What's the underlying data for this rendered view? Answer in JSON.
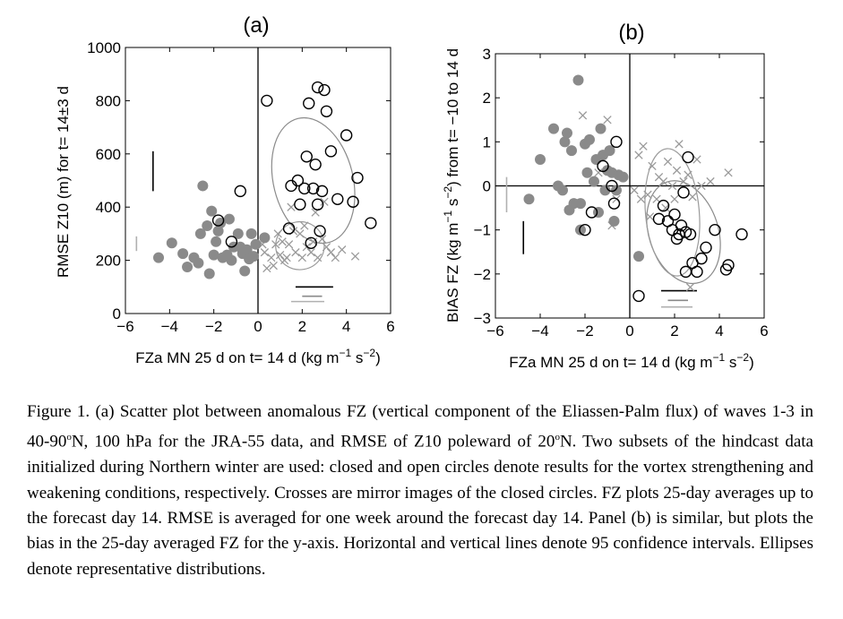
{
  "chart_data": [
    {
      "type": "scatter",
      "panel_label": "(a)",
      "xlabel": "FZa MN 25 d on t= 14 d (kg m",
      "xlabel_sup1": "−1",
      "xlabel_mid": " s",
      "xlabel_sup2": "−2",
      "xlabel_end": ")",
      "ylabel": "RMSE Z10 (m) for t= 14±3 d",
      "xlim": [
        -6,
        6
      ],
      "ylim": [
        0,
        1000
      ],
      "xticks": [
        -6,
        -4,
        -2,
        0,
        2,
        4,
        6
      ],
      "xtick_labels": [
        "−6",
        "−4",
        "−2",
        "0",
        "2",
        "4",
        "6"
      ],
      "yticks": [
        0,
        200,
        400,
        600,
        800,
        1000
      ],
      "ytick_labels": [
        "0",
        "200",
        "400",
        "600",
        "800",
        "1000"
      ],
      "grid": false,
      "reference_lines": {
        "x": 0
      },
      "series": [
        {
          "marker": "filled-circle",
          "color": "#8a8a8a",
          "points": [
            [
              -4.5,
              210
            ],
            [
              -3.9,
              265
            ],
            [
              -3.4,
              225
            ],
            [
              -3.2,
              175
            ],
            [
              -2.9,
              210
            ],
            [
              -2.7,
              190
            ],
            [
              -2.6,
              300
            ],
            [
              -2.5,
              480
            ],
            [
              -2.3,
              330
            ],
            [
              -2.2,
              150
            ],
            [
              -2.1,
              385
            ],
            [
              -1.9,
              270
            ],
            [
              -1.8,
              310
            ],
            [
              -1.7,
              340
            ],
            [
              -1.6,
              210
            ],
            [
              -1.4,
              220
            ],
            [
              -1.3,
              355
            ],
            [
              -1.2,
              200
            ],
            [
              -1.1,
              250
            ],
            [
              -0.9,
              300
            ],
            [
              -0.8,
              250
            ],
            [
              -0.7,
              225
            ],
            [
              -0.6,
              160
            ],
            [
              -0.5,
              240
            ],
            [
              -0.4,
              205
            ],
            [
              -0.3,
              300
            ],
            [
              -0.2,
              215
            ],
            [
              0.3,
              285
            ],
            [
              -0.1,
              260
            ],
            [
              -2.0,
              220
            ]
          ]
        },
        {
          "marker": "open-circle",
          "color": "#000000",
          "points": [
            [
              -1.8,
              350
            ],
            [
              -0.8,
              460
            ],
            [
              -1.2,
              270
            ],
            [
              0.4,
              800
            ],
            [
              1.4,
              320
            ],
            [
              1.5,
              480
            ],
            [
              1.8,
              500
            ],
            [
              1.9,
              410
            ],
            [
              2.1,
              470
            ],
            [
              2.2,
              590
            ],
            [
              2.3,
              790
            ],
            [
              2.4,
              265
            ],
            [
              2.5,
              470
            ],
            [
              2.6,
              560
            ],
            [
              2.7,
              850
            ],
            [
              2.8,
              310
            ],
            [
              2.9,
              460
            ],
            [
              3.0,
              840
            ],
            [
              3.1,
              760
            ],
            [
              3.3,
              610
            ],
            [
              3.6,
              430
            ],
            [
              4.0,
              670
            ],
            [
              4.3,
              420
            ],
            [
              4.5,
              510
            ],
            [
              5.1,
              340
            ],
            [
              2.7,
              410
            ]
          ]
        },
        {
          "marker": "cross",
          "color": "#9a9a9a",
          "points": [
            [
              0.2,
              260
            ],
            [
              0.3,
              230
            ],
            [
              0.6,
              210
            ],
            [
              0.7,
              180
            ],
            [
              0.8,
              260
            ],
            [
              0.9,
              300
            ],
            [
              1.0,
              220
            ],
            [
              1.2,
              200
            ],
            [
              1.3,
              210
            ],
            [
              1.4,
              260
            ],
            [
              1.6,
              310
            ],
            [
              1.7,
              230
            ],
            [
              1.9,
              300
            ],
            [
              2.0,
              210
            ],
            [
              2.1,
              330
            ],
            [
              2.2,
              250
            ],
            [
              2.4,
              230
            ],
            [
              2.5,
              270
            ],
            [
              2.7,
              210
            ],
            [
              2.9,
              280
            ],
            [
              3.1,
              250
            ],
            [
              3.3,
              230
            ],
            [
              3.5,
              210
            ],
            [
              3.0,
              420
            ],
            [
              0.4,
              170
            ],
            [
              1.5,
              400
            ],
            [
              2.6,
              380
            ],
            [
              4.4,
              215
            ],
            [
              3.8,
              240
            ],
            [
              1.1,
              270
            ]
          ]
        }
      ],
      "ellipses": [
        {
          "cx": 2.5,
          "cy": 500,
          "rx": 1.8,
          "ry": 240,
          "rotate": -14,
          "color": "#8a8a8a"
        },
        {
          "cx": 1.9,
          "cy": 255,
          "rx": 1.1,
          "ry": 90,
          "rotate": -10,
          "color": "#9a9a9a"
        }
      ],
      "ci_marks": [
        {
          "orient": "v",
          "x": -4.75,
          "y0": 460,
          "y1": 610,
          "color": "#000000"
        },
        {
          "orient": "v",
          "x": -5.5,
          "y0": 235,
          "y1": 290,
          "color": "#b0b0b0"
        },
        {
          "orient": "h",
          "y": 100,
          "x0": 1.7,
          "x1": 3.4,
          "color": "#000000"
        },
        {
          "orient": "h",
          "y": 65,
          "x0": 2.0,
          "x1": 2.9,
          "color": "#8a8a8a"
        },
        {
          "orient": "h",
          "y": 45,
          "x0": 1.5,
          "x1": 3.0,
          "color": "#b0b0b0"
        }
      ]
    },
    {
      "type": "scatter",
      "panel_label": "(b)",
      "xlabel": "FZa MN 25 d on t= 14 d (kg m",
      "xlabel_sup1": "−1",
      "xlabel_mid": " s",
      "xlabel_sup2": "−2",
      "xlabel_end": ")",
      "ylabel": "BIAS FZ (kg m",
      "ylabel_sup1": "−1",
      "ylabel_mid": " s",
      "ylabel_sup2": "−2",
      "ylabel_end": ") from t= −10 to 14 d",
      "xlim": [
        -6,
        6
      ],
      "ylim": [
        -3,
        3
      ],
      "xticks": [
        -6,
        -4,
        -2,
        0,
        2,
        4,
        6
      ],
      "xtick_labels": [
        "−6",
        "−4",
        "−2",
        "0",
        "2",
        "4",
        "6"
      ],
      "yticks": [
        -3,
        -2,
        -1,
        0,
        1,
        2,
        3
      ],
      "ytick_labels": [
        "−3",
        "−2",
        "−1",
        "0",
        "1",
        "2",
        "3"
      ],
      "grid": false,
      "reference_lines": {
        "x": 0,
        "y": 0
      },
      "series": [
        {
          "marker": "filled-circle",
          "color": "#8a8a8a",
          "points": [
            [
              -4.5,
              -0.3
            ],
            [
              -4.0,
              0.6
            ],
            [
              -3.4,
              1.3
            ],
            [
              -3.2,
              0.0
            ],
            [
              -3.0,
              -0.1
            ],
            [
              -2.8,
              1.2
            ],
            [
              -2.7,
              -0.55
            ],
            [
              -2.6,
              0.8
            ],
            [
              -2.5,
              -0.4
            ],
            [
              -2.3,
              2.4
            ],
            [
              -2.2,
              -1.0
            ],
            [
              -2.2,
              -0.4
            ],
            [
              -2.0,
              0.95
            ],
            [
              -1.9,
              0.3
            ],
            [
              -1.8,
              1.05
            ],
            [
              -1.6,
              0.1
            ],
            [
              -1.5,
              0.6
            ],
            [
              -1.3,
              1.3
            ],
            [
              -1.2,
              0.7
            ],
            [
              -1.1,
              -0.1
            ],
            [
              -1.0,
              0.35
            ],
            [
              -0.9,
              0.8
            ],
            [
              -0.8,
              0.3
            ],
            [
              -0.7,
              -0.8
            ],
            [
              -0.6,
              -0.1
            ],
            [
              -0.5,
              0.25
            ],
            [
              0.4,
              -1.6
            ],
            [
              -2.9,
              1.0
            ],
            [
              -1.4,
              -0.6
            ],
            [
              -0.3,
              0.2
            ]
          ]
        },
        {
          "marker": "open-circle",
          "color": "#000000",
          "points": [
            [
              -2.0,
              -1.0
            ],
            [
              -1.7,
              -0.6
            ],
            [
              -1.2,
              0.45
            ],
            [
              -0.8,
              0.0
            ],
            [
              -0.7,
              -0.4
            ],
            [
              -0.6,
              1.0
            ],
            [
              0.4,
              -2.5
            ],
            [
              1.3,
              -0.75
            ],
            [
              1.5,
              -0.45
            ],
            [
              1.7,
              -0.8
            ],
            [
              1.9,
              -1.0
            ],
            [
              2.0,
              -0.65
            ],
            [
              2.1,
              -1.2
            ],
            [
              2.2,
              -1.1
            ],
            [
              2.3,
              -0.9
            ],
            [
              2.4,
              -0.15
            ],
            [
              2.5,
              -1.05
            ],
            [
              2.6,
              0.65
            ],
            [
              2.7,
              -1.1
            ],
            [
              2.8,
              -1.75
            ],
            [
              3.0,
              -1.95
            ],
            [
              3.2,
              -1.65
            ],
            [
              3.4,
              -1.4
            ],
            [
              3.8,
              -1.0
            ],
            [
              4.3,
              -1.9
            ],
            [
              4.4,
              -1.8
            ],
            [
              5.0,
              -1.1
            ],
            [
              2.5,
              -1.95
            ]
          ]
        },
        {
          "marker": "cross",
          "color": "#9a9a9a",
          "points": [
            [
              -2.1,
              1.6
            ],
            [
              -1.4,
              0.3
            ],
            [
              -1.0,
              1.5
            ],
            [
              -0.8,
              -0.9
            ],
            [
              -0.6,
              -0.3
            ],
            [
              0.2,
              -0.1
            ],
            [
              0.4,
              0.7
            ],
            [
              0.5,
              -0.3
            ],
            [
              0.6,
              0.9
            ],
            [
              0.8,
              -0.2
            ],
            [
              1.0,
              0.45
            ],
            [
              1.2,
              -0.3
            ],
            [
              1.3,
              0.2
            ],
            [
              1.5,
              0.1
            ],
            [
              1.6,
              -0.5
            ],
            [
              1.7,
              0.55
            ],
            [
              1.9,
              0.0
            ],
            [
              2.0,
              -0.3
            ],
            [
              2.1,
              0.35
            ],
            [
              2.2,
              0.95
            ],
            [
              2.4,
              0.1
            ],
            [
              2.6,
              0.25
            ],
            [
              2.8,
              -0.25
            ],
            [
              3.0,
              0.6
            ],
            [
              3.2,
              0.0
            ],
            [
              3.6,
              0.1
            ],
            [
              4.4,
              0.3
            ],
            [
              0.9,
              -0.7
            ],
            [
              2.7,
              -2.3
            ]
          ]
        }
      ],
      "ellipses": [
        {
          "cx": 2.4,
          "cy": -1.05,
          "rx": 1.55,
          "ry": 1.2,
          "rotate": -18,
          "color": "#8a8a8a"
        },
        {
          "cx": 1.9,
          "cy": -0.6,
          "rx": 1.2,
          "ry": 1.45,
          "rotate": -5,
          "color": "#9a9a9a"
        }
      ],
      "ci_marks": [
        {
          "orient": "v",
          "x": -4.75,
          "y0": -1.55,
          "y1": -0.8,
          "color": "#000000"
        },
        {
          "orient": "v",
          "x": -5.5,
          "y0": -0.6,
          "y1": 0.2,
          "color": "#b0b0b0"
        },
        {
          "orient": "h",
          "y": -2.38,
          "x0": 1.4,
          "x1": 3.0,
          "color": "#000000"
        },
        {
          "orient": "h",
          "y": -2.6,
          "x0": 1.7,
          "x1": 2.6,
          "color": "#8a8a8a"
        },
        {
          "orient": "h",
          "y": -2.75,
          "x0": 1.4,
          "x1": 2.8,
          "color": "#b0b0b0"
        }
      ]
    }
  ],
  "caption": {
    "fig_label": "Figure 1.",
    "p1": " (a) Scatter plot between anomalous FZ (vertical component of the Eliassen-Palm flux) of waves 1-3 in 40-90",
    "deg1": "o",
    "p2": "N, 100 hPa for the JRA-55 data, and RMSE of Z10 poleward of 20",
    "deg2": "o",
    "p3": "N. Two subsets of the hindcast data initialized during Northern winter are used: closed and open circles denote results for the vortex strengthening and weakening conditions, respectively. Crosses are mirror images of the closed circles. FZ plots 25-day averages up to the forecast day 14. RMSE is averaged for one week around the forecast day 14. Panel (b) is similar, but plots the bias in the 25-day averaged FZ for the y-axis. Horizontal and vertical lines denote 95 confidence intervals. Ellipses denote representative distributions."
  }
}
